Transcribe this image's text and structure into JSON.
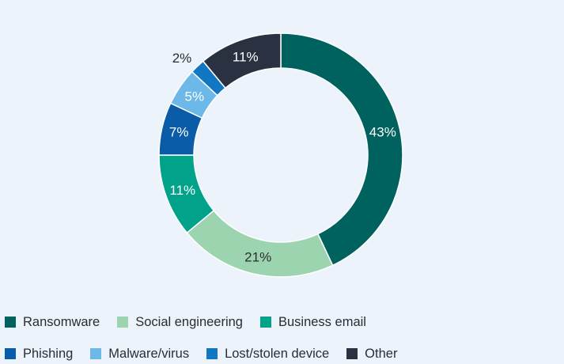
{
  "chart_data": {
    "type": "pie",
    "style": "donut",
    "title": "",
    "categories": [
      "Ransomware",
      "Social engineering",
      "Business email",
      "Phishing",
      "Malware/virus",
      "Lost/stolen device",
      "Other"
    ],
    "values": [
      43,
      21,
      11,
      7,
      5,
      2,
      11
    ],
    "labels": [
      "43%",
      "21%",
      "11%",
      "7%",
      "5%",
      "2%",
      "11%"
    ],
    "colors": [
      "#00625e",
      "#9dd4b0",
      "#00a38a",
      "#0a5ca8",
      "#6cb8e8",
      "#1277c2",
      "#2a3242"
    ],
    "legend_position": "bottom"
  }
}
